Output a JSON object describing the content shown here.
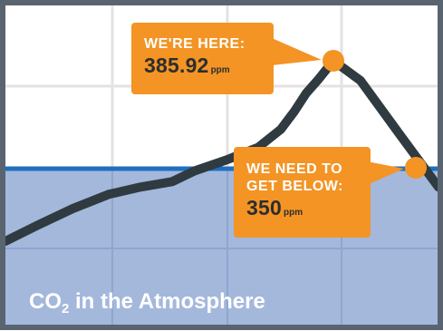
{
  "chart_data": {
    "type": "line",
    "title_main": "CO",
    "title_sub": "2",
    "title_rest": " in the Atmosphere",
    "series": [
      {
        "values": [
          0,
          9,
          18,
          26,
          30,
          33,
          39,
          45,
          52,
          62,
          72,
          82,
          90,
          100,
          89,
          60,
          30
        ]
      }
    ],
    "marked_points": [
      {
        "index": 13,
        "label": "current"
      },
      {
        "index": 15,
        "label": "target"
      }
    ],
    "threshold_index": 15,
    "current": {
      "line1": "WE'RE HERE:",
      "value": "385.92",
      "unit": "ppm"
    },
    "target": {
      "line1": "WE NEED TO",
      "line2": "GET BELOW:",
      "value": "350",
      "unit": "ppm"
    },
    "colors": {
      "line": "#2f3b40",
      "marker": "#f39425",
      "callout": "#f39425",
      "threshold_line": "#1f6fbf",
      "safe_zone": "#a4b8dc",
      "grid": "#e3e3e3",
      "grid_safe": "#8fa6cf",
      "frame": "#5a6470",
      "title_text": "#ffffff"
    },
    "grid": true
  }
}
